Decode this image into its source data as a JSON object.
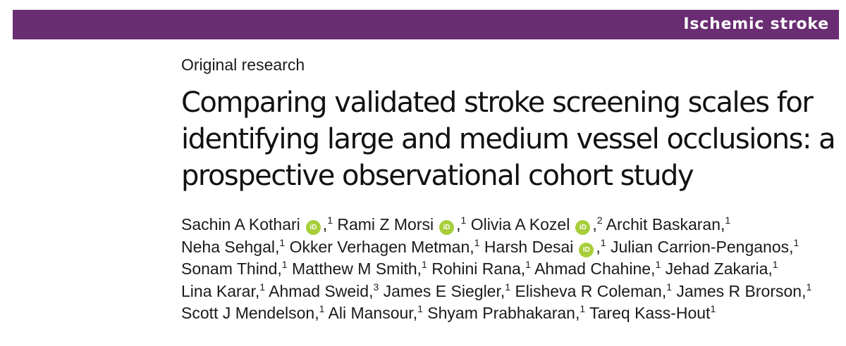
{
  "header": {
    "section": "Ischemic stroke",
    "brand_color": "#6a2c72"
  },
  "article": {
    "type": "Original research",
    "title_lines": [
      "Comparing validated stroke screening scales for",
      "identifying large and medium vessel occlusions: a",
      "prospective observational cohort study"
    ]
  },
  "orcid": {
    "icon": "orcid-icon",
    "glyph": "iD",
    "color": "#a6ce39"
  },
  "authors": [
    {
      "name": "Sachin A Kothari",
      "orcid": true,
      "aff": "1"
    },
    {
      "name": "Rami Z Morsi",
      "orcid": true,
      "aff": "1"
    },
    {
      "name": "Olivia A Kozel",
      "orcid": true,
      "aff": "2"
    },
    {
      "name": "Archit Baskaran,",
      "orcid": false,
      "aff": "1"
    },
    {
      "name": "Neha Sehgal,",
      "orcid": false,
      "aff": "1"
    },
    {
      "name": "Okker Verhagen Metman,",
      "orcid": false,
      "aff": "1"
    },
    {
      "name": "Harsh Desai",
      "orcid": true,
      "aff": "1"
    },
    {
      "name": "Julian Carrion-Penganos,",
      "orcid": false,
      "aff": "1"
    },
    {
      "name": "Sonam Thind,",
      "orcid": false,
      "aff": "1"
    },
    {
      "name": "Matthew M Smith,",
      "orcid": false,
      "aff": "1"
    },
    {
      "name": "Rohini Rana,",
      "orcid": false,
      "aff": "1"
    },
    {
      "name": "Ahmad Chahine,",
      "orcid": false,
      "aff": "1"
    },
    {
      "name": "Jehad Zakaria,",
      "orcid": false,
      "aff": "1"
    },
    {
      "name": "Lina Karar,",
      "orcid": false,
      "aff": "1"
    },
    {
      "name": "Ahmad Sweid,",
      "orcid": false,
      "aff": "3"
    },
    {
      "name": "James E Siegler,",
      "orcid": false,
      "aff": "1"
    },
    {
      "name": "Elisheva R Coleman,",
      "orcid": false,
      "aff": "1"
    },
    {
      "name": "James R Brorson,",
      "orcid": false,
      "aff": "1"
    },
    {
      "name": "Scott J Mendelson,",
      "orcid": false,
      "aff": "1"
    },
    {
      "name": "Ali Mansour,",
      "orcid": false,
      "aff": "1"
    },
    {
      "name": "Shyam Prabhakaran,",
      "orcid": false,
      "aff": "1"
    },
    {
      "name": "Tareq Kass-Hout",
      "orcid": false,
      "aff": "1"
    }
  ]
}
